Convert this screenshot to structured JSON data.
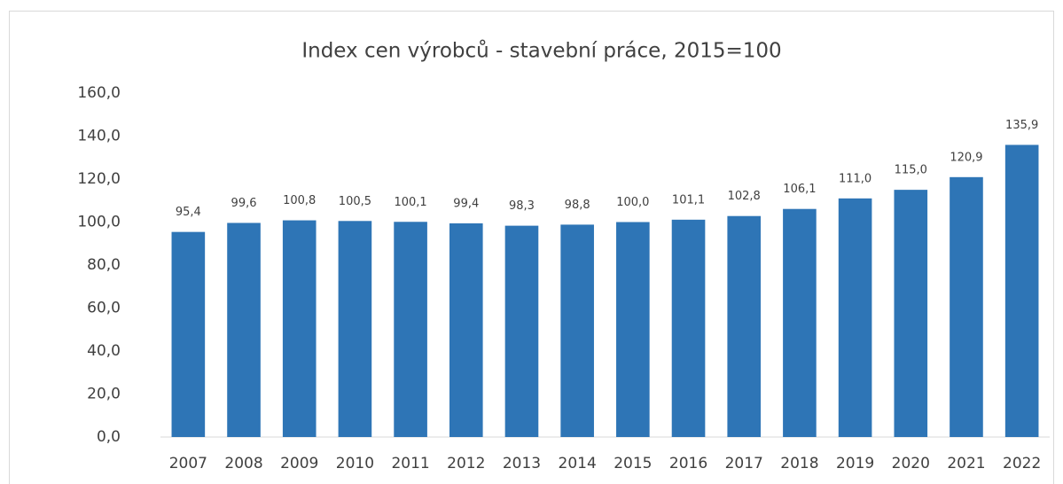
{
  "chart_data": {
    "type": "bar",
    "title": "Index cen výrobců - stavební práce, 2015=100",
    "categories": [
      "2007",
      "2008",
      "2009",
      "2010",
      "2011",
      "2012",
      "2013",
      "2014",
      "2015",
      "2016",
      "2017",
      "2018",
      "2019",
      "2020",
      "2021",
      "2022"
    ],
    "values": [
      95.4,
      99.6,
      100.8,
      100.5,
      100.1,
      99.4,
      98.3,
      98.8,
      100.0,
      101.1,
      102.8,
      106.1,
      111.0,
      115.0,
      120.9,
      135.9
    ],
    "value_labels": [
      "95,4",
      "99,6",
      "100,8",
      "100,5",
      "100,1",
      "99,4",
      "98,3",
      "98,8",
      "100,0",
      "101,1",
      "102,8",
      "106,1",
      "111,0",
      "115,0",
      "120,9",
      "135,9"
    ],
    "color": "#2e75b6",
    "ylim": [
      0,
      160
    ],
    "yticks": [
      {
        "value": 0,
        "label": "0,0"
      },
      {
        "value": 20,
        "label": "20,0"
      },
      {
        "value": 40,
        "label": "40,0"
      },
      {
        "value": 60,
        "label": "60,0"
      },
      {
        "value": 80,
        "label": "80,0"
      },
      {
        "value": 100,
        "label": "100,0"
      },
      {
        "value": 120,
        "label": "120,0"
      },
      {
        "value": 140,
        "label": "140,0"
      },
      {
        "value": 160,
        "label": "160,0"
      }
    ],
    "grid": false
  }
}
